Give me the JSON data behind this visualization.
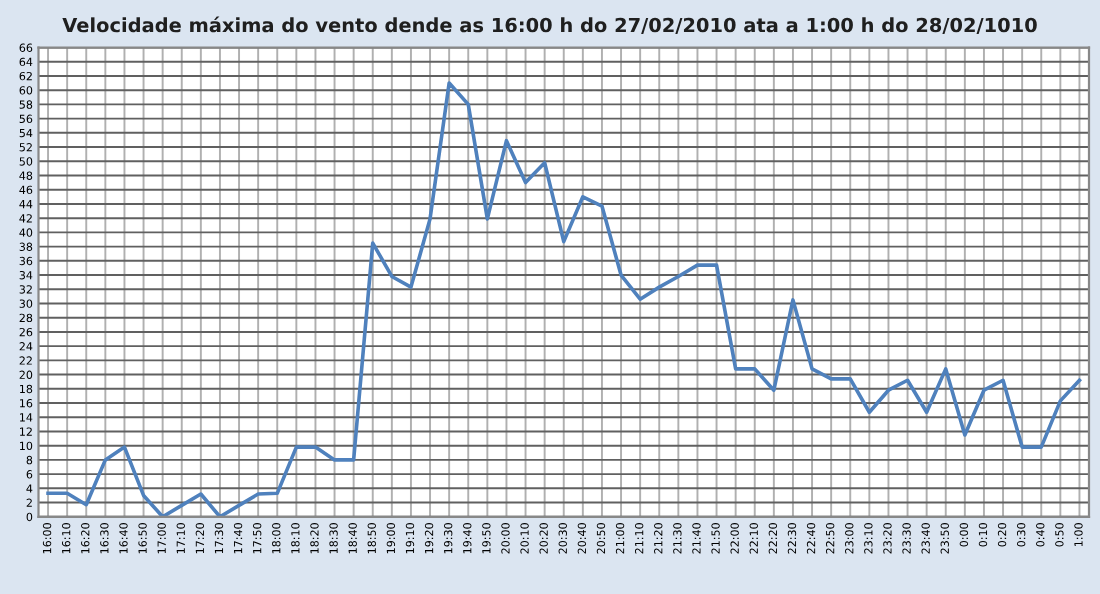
{
  "chart_data": {
    "type": "line",
    "title": "Velocidade máxima do vento dende as 16:00 h do 27/02/2010 ata a 1:00 h do 28/02/1010",
    "categories": [
      "16:00",
      "16:10",
      "16:20",
      "16:30",
      "16:40",
      "16:50",
      "17:00",
      "17:10",
      "17:20",
      "17:30",
      "17:40",
      "17:50",
      "18:00",
      "18:10",
      "18:20",
      "18:30",
      "18:40",
      "18:50",
      "19:00",
      "19:10",
      "19:20",
      "19:30",
      "19:40",
      "19:50",
      "20:00",
      "20:10",
      "20:20",
      "20:30",
      "20:40",
      "20:50",
      "21:00",
      "21:10",
      "21:20",
      "21:30",
      "21:40",
      "21:50",
      "22:00",
      "22:10",
      "22:20",
      "22:30",
      "22:40",
      "22:50",
      "23:00",
      "23:10",
      "23:20",
      "23:30",
      "23:40",
      "23:50",
      "0:00",
      "0:10",
      "0:20",
      "0:30",
      "0:40",
      "0:50",
      "1:00"
    ],
    "series": [
      {
        "color": "#4f81bd",
        "values": [
          3.3,
          3.3,
          1.7,
          8,
          9.8,
          3,
          0,
          1.6,
          3.2,
          0,
          1.6,
          3.2,
          3.3,
          9.8,
          9.8,
          8,
          8,
          38.5,
          33.8,
          32.3,
          41.9,
          61,
          58,
          41.9,
          52.9,
          47,
          49.8,
          38.7,
          45,
          43.7,
          34,
          30.6,
          32.3,
          33.8,
          35.4,
          35.4,
          20.8,
          20.8,
          17.8,
          30.5,
          20.8,
          19.4,
          19.4,
          14.7,
          17.8,
          19.2,
          14.7,
          20.8,
          11.5,
          17.8,
          19.2,
          9.8,
          9.8,
          16.3,
          19.2
        ]
      }
    ],
    "ylim": [
      0,
      66
    ],
    "yticks": [
      0,
      2,
      4,
      6,
      8,
      10,
      12,
      14,
      16,
      18,
      20,
      22,
      24,
      26,
      28,
      30,
      32,
      34,
      36,
      38,
      40,
      42,
      44,
      46,
      48,
      50,
      52,
      54,
      56,
      58,
      60,
      62,
      64,
      66
    ],
    "grid": true,
    "legend": false,
    "marker": "none",
    "line_style": "solid"
  }
}
